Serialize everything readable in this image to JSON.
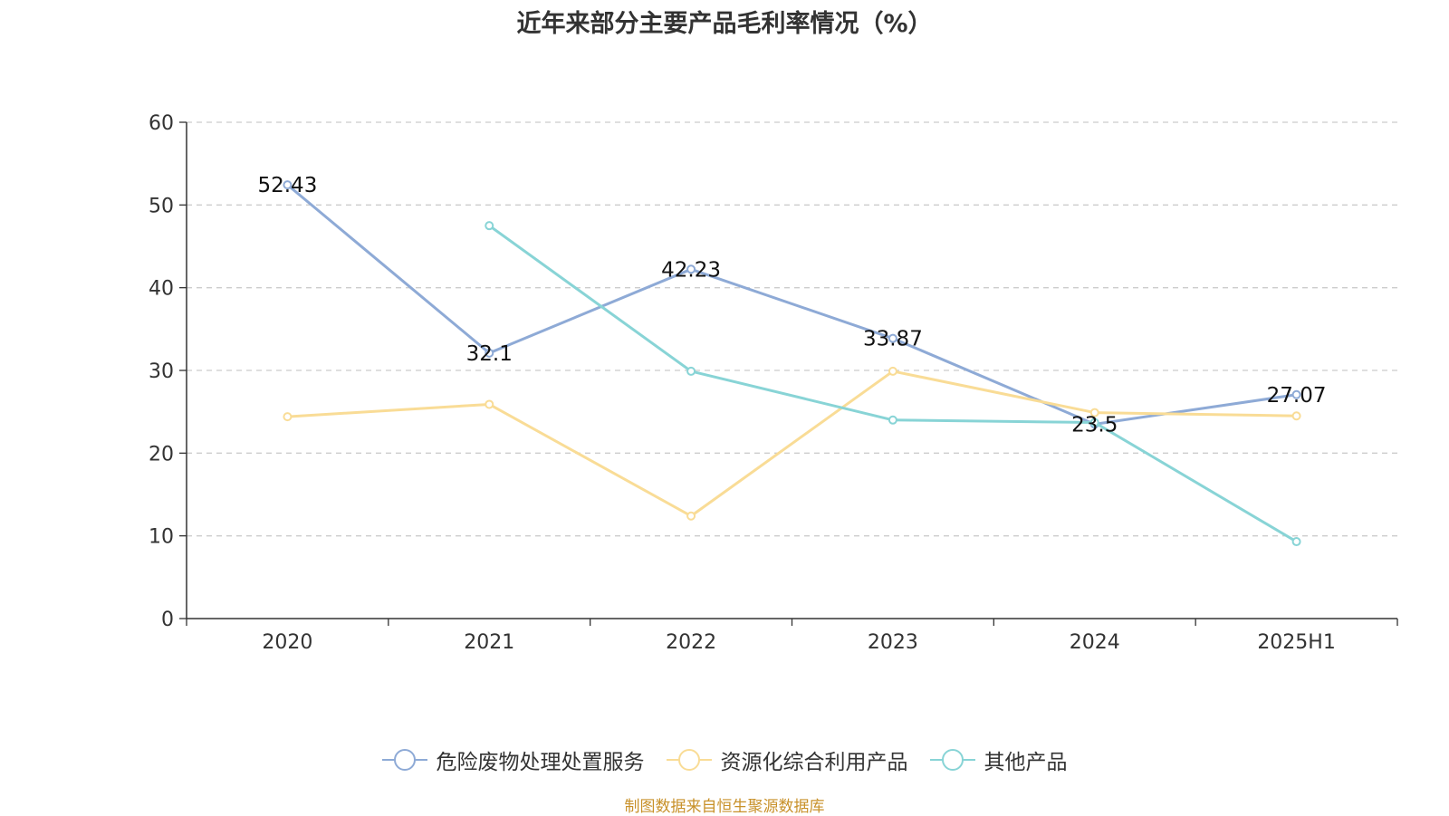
{
  "title": "近年来部分主要产品毛利率情况（%）",
  "source": "制图数据来自恒生聚源数据库",
  "source_color": "#c8912a",
  "chart_data": {
    "type": "line",
    "categories": [
      "2020",
      "2021",
      "2022",
      "2023",
      "2024",
      "2025H1"
    ],
    "ylim": [
      0,
      60
    ],
    "yticks": [
      0,
      10,
      20,
      30,
      40,
      50,
      60
    ],
    "grid": true,
    "legend_position": "bottom",
    "series": [
      {
        "name": "危险废物处理处置服务",
        "color": "#8eaad6",
        "values": [
          52.43,
          32.1,
          42.23,
          33.87,
          23.5,
          27.07
        ],
        "labels": [
          "52.43",
          "32.1",
          "42.23",
          "33.87",
          "23.5",
          "27.07"
        ]
      },
      {
        "name": "资源化综合利用产品",
        "color": "#f9dc96",
        "values": [
          24.4,
          25.9,
          12.4,
          29.9,
          24.9,
          24.5
        ],
        "labels": null
      },
      {
        "name": "其他产品",
        "color": "#88d4d6",
        "values": [
          null,
          47.5,
          29.9,
          24.0,
          23.7,
          9.3
        ],
        "labels": null
      }
    ]
  }
}
